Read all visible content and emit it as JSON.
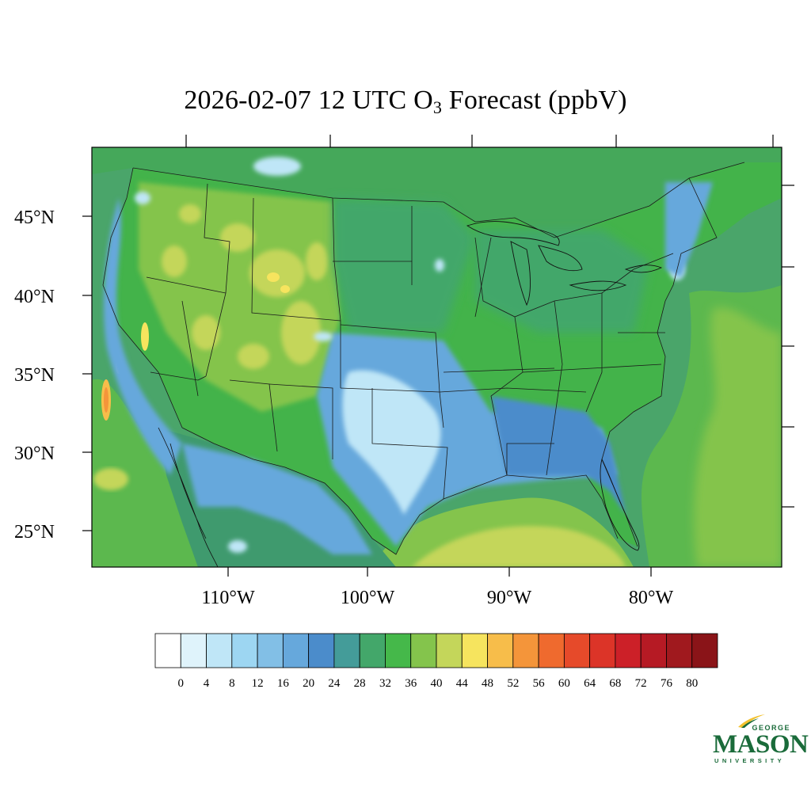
{
  "title": {
    "prefix": "2026-02-07 12 UTC O",
    "subscript": "3",
    "suffix": " Forecast (ppbV)"
  },
  "map": {
    "extent": {
      "lon_min": -120.5,
      "lon_max": -71.5,
      "lat_min": 23.0,
      "lat_max": 49.6
    },
    "lat_ticks": [
      {
        "value": 45,
        "label": "45°N"
      },
      {
        "value": 40,
        "label": "40°N"
      },
      {
        "value": 35,
        "label": "35°N"
      },
      {
        "value": 30,
        "label": "30°N"
      },
      {
        "value": 25,
        "label": "25°N"
      }
    ],
    "lon_ticks": [
      {
        "value": -110,
        "label": "110°W"
      },
      {
        "value": -100,
        "label": "100°W"
      },
      {
        "value": -90,
        "label": "90°W"
      },
      {
        "value": -80,
        "label": "80°W"
      }
    ],
    "ocean_color": "#4aa56a",
    "land_base_color": "#43b34a"
  },
  "colorbar": {
    "levels": [
      0,
      4,
      8,
      12,
      16,
      20,
      24,
      28,
      32,
      36,
      40,
      44,
      48,
      52,
      56,
      60,
      64,
      68,
      72,
      76,
      80
    ],
    "colors": [
      "#ffffff",
      "#dff3fb",
      "#bfe6f7",
      "#9dd6f2",
      "#82bfe6",
      "#66a8dc",
      "#4b8ccb",
      "#449c99",
      "#43a76a",
      "#45b84a",
      "#84c44c",
      "#c4d65a",
      "#f6e45e",
      "#f7bd4a",
      "#f4953a",
      "#ef6a2e",
      "#e64a2a",
      "#dc3428",
      "#cc2028",
      "#b61a24",
      "#a0191e",
      "#8a1418"
    ]
  },
  "logo": {
    "top_word": "GEORGE",
    "main_word": "MASON",
    "bottom_word": "UNIVERSITY",
    "color": "#1a6b3a",
    "accent": "#f2c12e"
  }
}
